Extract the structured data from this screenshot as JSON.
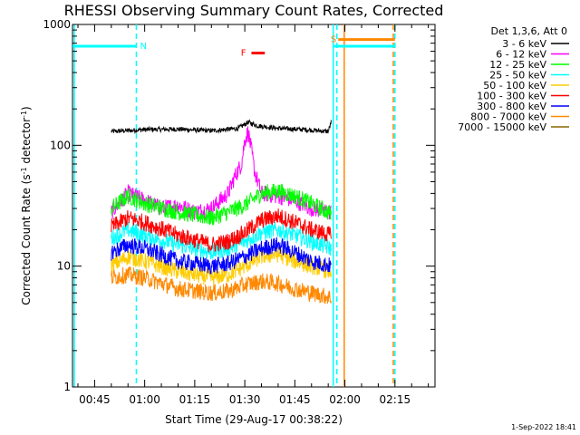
{
  "chart_data": {
    "type": "line",
    "title": "RHESSI Observing Summary Count Rates, Corrected",
    "xlabel": "Start Time (29-Aug-17 00:38:22)",
    "ylabel_main": "Corrected Count Rate (s",
    "ylabel_sup1": "-1",
    "ylabel_mid": " detector",
    "ylabel_sup2": "-1",
    "ylabel_end": ")",
    "yscale": "log",
    "ylim": [
      1,
      1000
    ],
    "xlim_minutes": [
      38.37,
      147.0
    ],
    "x_ticks": [
      {
        "label": "00:45",
        "minute": 45
      },
      {
        "label": "01:00",
        "minute": 60
      },
      {
        "label": "01:15",
        "minute": 75
      },
      {
        "label": "01:30",
        "minute": 90
      },
      {
        "label": "01:45",
        "minute": 105
      },
      {
        "label": "02:00",
        "minute": 120
      },
      {
        "label": "02:15",
        "minute": 135
      }
    ],
    "y_ticks": [
      {
        "label": "1",
        "value": 1
      },
      {
        "label": "10",
        "value": 10
      },
      {
        "label": "100",
        "value": 100
      },
      {
        "label": "1000",
        "value": 1000
      }
    ],
    "legend_header": "Det 1,3,6, Att 0",
    "series": [
      {
        "name": "3 - 6 keV",
        "color": "#000000",
        "x": [
          50,
          60,
          70,
          80,
          88,
          91,
          94,
          100,
          108,
          115,
          116
        ],
        "y": [
          130,
          135,
          136,
          132,
          138,
          155,
          145,
          138,
          135,
          130,
          160
        ]
      },
      {
        "name": "6 - 12 keV",
        "color": "#ff00ff",
        "x": [
          50,
          55,
          60,
          65,
          70,
          75,
          80,
          85,
          87,
          89,
          90,
          91,
          92,
          93,
          95,
          100,
          105,
          110,
          116
        ],
        "y": [
          28,
          40,
          35,
          30,
          32,
          28,
          30,
          40,
          55,
          70,
          110,
          130,
          90,
          60,
          40,
          38,
          35,
          30,
          28
        ]
      },
      {
        "name": "12 - 25 keV",
        "color": "#00ff00",
        "x": [
          50,
          55,
          60,
          70,
          80,
          85,
          90,
          95,
          100,
          105,
          110,
          116
        ],
        "y": [
          30,
          38,
          33,
          28,
          25,
          28,
          32,
          40,
          42,
          38,
          33,
          27
        ]
      },
      {
        "name": "25 - 50 keV",
        "color": "#00ffff",
        "x": [
          50,
          55,
          60,
          70,
          80,
          85,
          90,
          95,
          100,
          105,
          110,
          116
        ],
        "y": [
          17,
          20,
          18,
          15,
          13,
          14,
          16,
          19,
          20,
          18,
          16,
          14
        ]
      },
      {
        "name": "50 - 100 keV",
        "color": "#ffcc00",
        "x": [
          50,
          55,
          60,
          70,
          80,
          85,
          90,
          95,
          100,
          105,
          110,
          116
        ],
        "y": [
          10,
          12,
          11,
          9,
          8,
          8.5,
          10,
          12,
          12.5,
          11,
          10,
          9
        ]
      },
      {
        "name": "100 - 300 keV",
        "color": "#ff0000",
        "x": [
          50,
          55,
          60,
          70,
          80,
          85,
          90,
          95,
          100,
          105,
          110,
          116
        ],
        "y": [
          21,
          25,
          23,
          18,
          15,
          16,
          19,
          24,
          26,
          23,
          20,
          18
        ]
      },
      {
        "name": "300 - 800 keV",
        "color": "#0000ff",
        "x": [
          50,
          55,
          60,
          70,
          80,
          85,
          90,
          95,
          100,
          105,
          110,
          116
        ],
        "y": [
          13,
          15,
          14,
          11,
          10,
          10.5,
          12,
          14,
          15,
          13,
          11,
          10
        ]
      },
      {
        "name": "800 - 7000 keV",
        "color": "#ff8800",
        "x": [
          50,
          55,
          60,
          70,
          80,
          85,
          90,
          95,
          100,
          105,
          110,
          116
        ],
        "y": [
          8,
          8.5,
          8,
          6.5,
          6,
          6.2,
          7,
          7.5,
          7.2,
          6.5,
          6,
          5.5
        ]
      },
      {
        "name": "7000 - 15000 keV",
        "color": "#886600",
        "x": [],
        "y": []
      }
    ],
    "vertical_lines": [
      {
        "minute": 38.9,
        "color": "#00ffff",
        "style": "solid"
      },
      {
        "minute": 57.5,
        "color": "#00ffff",
        "style": "dashed"
      },
      {
        "minute": 116.5,
        "color": "#00ffff",
        "style": "solid"
      },
      {
        "minute": 117.6,
        "color": "#00ffff",
        "style": "dashed"
      },
      {
        "minute": 119.8,
        "color": "#ff8800",
        "style": "solid"
      },
      {
        "minute": 134.5,
        "color": "#ff8800",
        "style": "dashed"
      },
      {
        "minute": 135.0,
        "color": "#00ffff",
        "style": "dashed"
      }
    ],
    "bars": [
      {
        "label": "N",
        "color": "#00ffff",
        "x0": 38.4,
        "x1": 57.5,
        "y": 660,
        "label_color": "#00ffff"
      },
      {
        "label": "F",
        "color": "#ff0000",
        "x0": 92,
        "x1": 96,
        "y": 580,
        "label_color": "#ff0000"
      },
      {
        "label": "S",
        "color": "#ff8800",
        "x0": 118,
        "x1": 135,
        "y": 750,
        "label_color": "#ff8800"
      },
      {
        "label": "",
        "color": "#00ffff",
        "x0": 116.5,
        "x1": 135,
        "y": 660,
        "label_color": "#00ffff"
      }
    ]
  },
  "footer": "1-Sep-2022 18:41"
}
